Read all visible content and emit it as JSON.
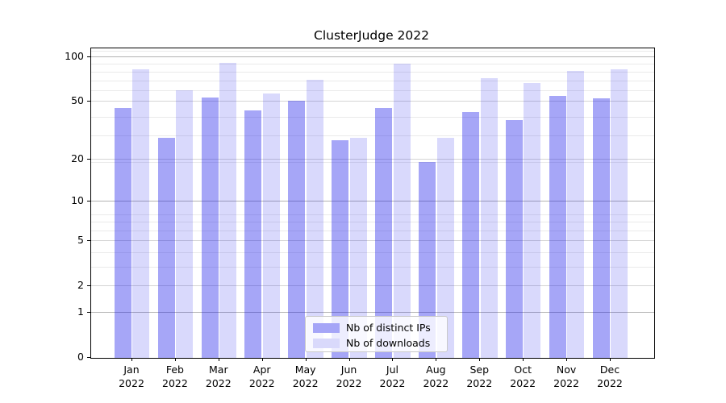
{
  "chart_data": {
    "type": "bar",
    "title": "ClusterJudge 2022",
    "categories": [
      "Jan",
      "Feb",
      "Mar",
      "Apr",
      "May",
      "Jun",
      "Jul",
      "Aug",
      "Sep",
      "Oct",
      "Nov",
      "Dec"
    ],
    "category_year": "2022",
    "series": [
      {
        "name": "Nb of distinct IPs",
        "color": "#a5a5f7",
        "fill": "rgba(20,20,235,0.38)",
        "values": [
          45,
          28,
          53,
          43,
          50,
          27,
          45,
          19,
          42,
          37,
          54,
          52
        ]
      },
      {
        "name": "Nb of downloads",
        "color": "#d9d9fb",
        "fill": "rgba(20,20,235,0.16)",
        "values": [
          82,
          59,
          91,
          56,
          70,
          28,
          89,
          28,
          71,
          66,
          80,
          82
        ]
      }
    ],
    "xlabel": "",
    "ylabel": "",
    "yscale": "log1p",
    "ylim": [
      0,
      115
    ],
    "yticks": [
      0,
      1,
      2,
      5,
      10,
      20,
      50,
      100
    ],
    "major_gridlines": [
      1,
      10,
      100
    ],
    "mid_gridlines": [
      2,
      5,
      20,
      50
    ],
    "minor_gridlines": [
      3,
      4,
      6,
      7,
      8,
      19,
      29,
      39,
      59,
      69,
      79,
      89,
      109
    ],
    "grid": true,
    "legend_position": "lower center"
  },
  "colors": {
    "major_grid": "#b3b3b3",
    "mid_grid": "#d4d4d4",
    "minor_grid": "#eaeaea",
    "spine": "#000000",
    "text": "#000000",
    "background": "#ffffff"
  }
}
